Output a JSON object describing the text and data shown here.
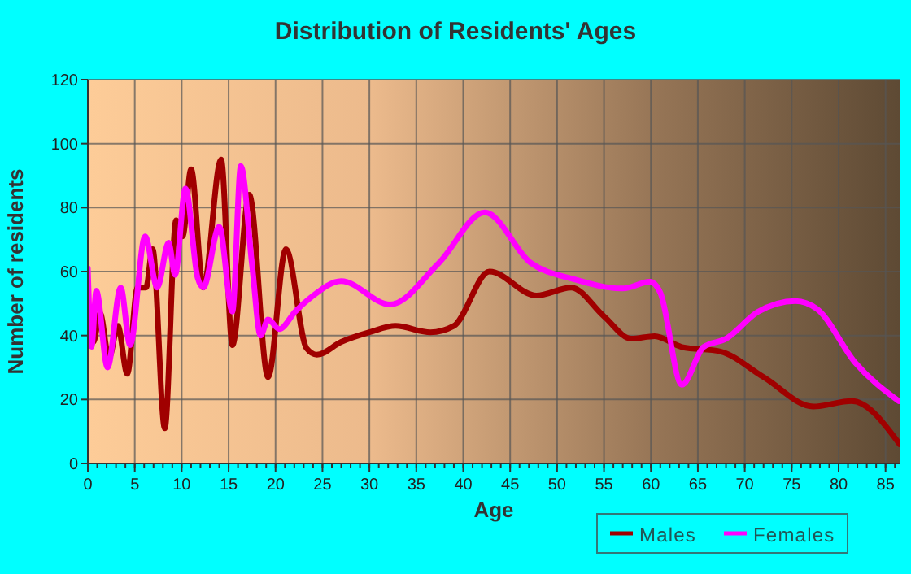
{
  "chart_data": {
    "type": "line",
    "title": "Distribution of Residents' Ages",
    "xlabel": "Age",
    "ylabel": "Number of residents",
    "xlim": [
      0,
      86.5
    ],
    "xticks": [
      0,
      5,
      10,
      15,
      20,
      25,
      30,
      35,
      40,
      45,
      50,
      55,
      60,
      65,
      70,
      75,
      80,
      85
    ],
    "ylim": [
      0,
      120
    ],
    "yticks": [
      0,
      20,
      40,
      60,
      80,
      100,
      120
    ],
    "grid": true,
    "legend": "bottom",
    "series": [
      {
        "name": "Males",
        "color": "#a00000",
        "x": [
          0.2,
          0.6,
          1.3,
          2.25,
          3.2,
          4.2,
          5.3,
          6.2,
          6.9,
          8.2,
          9.4,
          10.1,
          11,
          12.3,
          14.2,
          15.4,
          17.2,
          19.2,
          21.1,
          23.3,
          24.4,
          27,
          30,
          32.8,
          36.5,
          39,
          42.8,
          47.8,
          51.5,
          55,
          57.9,
          60.4,
          63.3,
          67.4,
          72,
          77.3,
          81.4,
          86.5
        ],
        "values": [
          47,
          38,
          47,
          33,
          43,
          28,
          55,
          55,
          67,
          11,
          76,
          71,
          92,
          55,
          95,
          37,
          84,
          27,
          67,
          36,
          34,
          38,
          41,
          43,
          41,
          43,
          60,
          52.5,
          55,
          46,
          39,
          39.8,
          36.4,
          35,
          27,
          17.8,
          19.5,
          6
        ]
      },
      {
        "name": "Females",
        "color": "#ff00ff",
        "x": [
          0,
          0.4,
          0.9,
          2.1,
          3.5,
          4.5,
          6.1,
          7.4,
          8.6,
          9.3,
          10.4,
          11.7,
          12.3,
          14,
          15.4,
          16.3,
          17.5,
          18.4,
          19.2,
          20.4,
          22.1,
          23.8,
          27,
          32.2,
          37.4,
          42.3,
          47.2,
          51.8,
          57,
          59.9,
          61,
          63.3,
          65.6,
          68,
          71.4,
          75.4,
          77.7,
          81.8,
          86.4
        ],
        "values": [
          61,
          36.5,
          54,
          30,
          55,
          37,
          71,
          55,
          69,
          59,
          86,
          58,
          55,
          74,
          47.5,
          93,
          62,
          40,
          45,
          42,
          47.5,
          52,
          57,
          49.7,
          62.7,
          78.5,
          62.7,
          57.6,
          54.7,
          56.8,
          53.4,
          24.6,
          36.4,
          39,
          47.4,
          50.8,
          48.3,
          31.4,
          19.5
        ]
      }
    ]
  }
}
